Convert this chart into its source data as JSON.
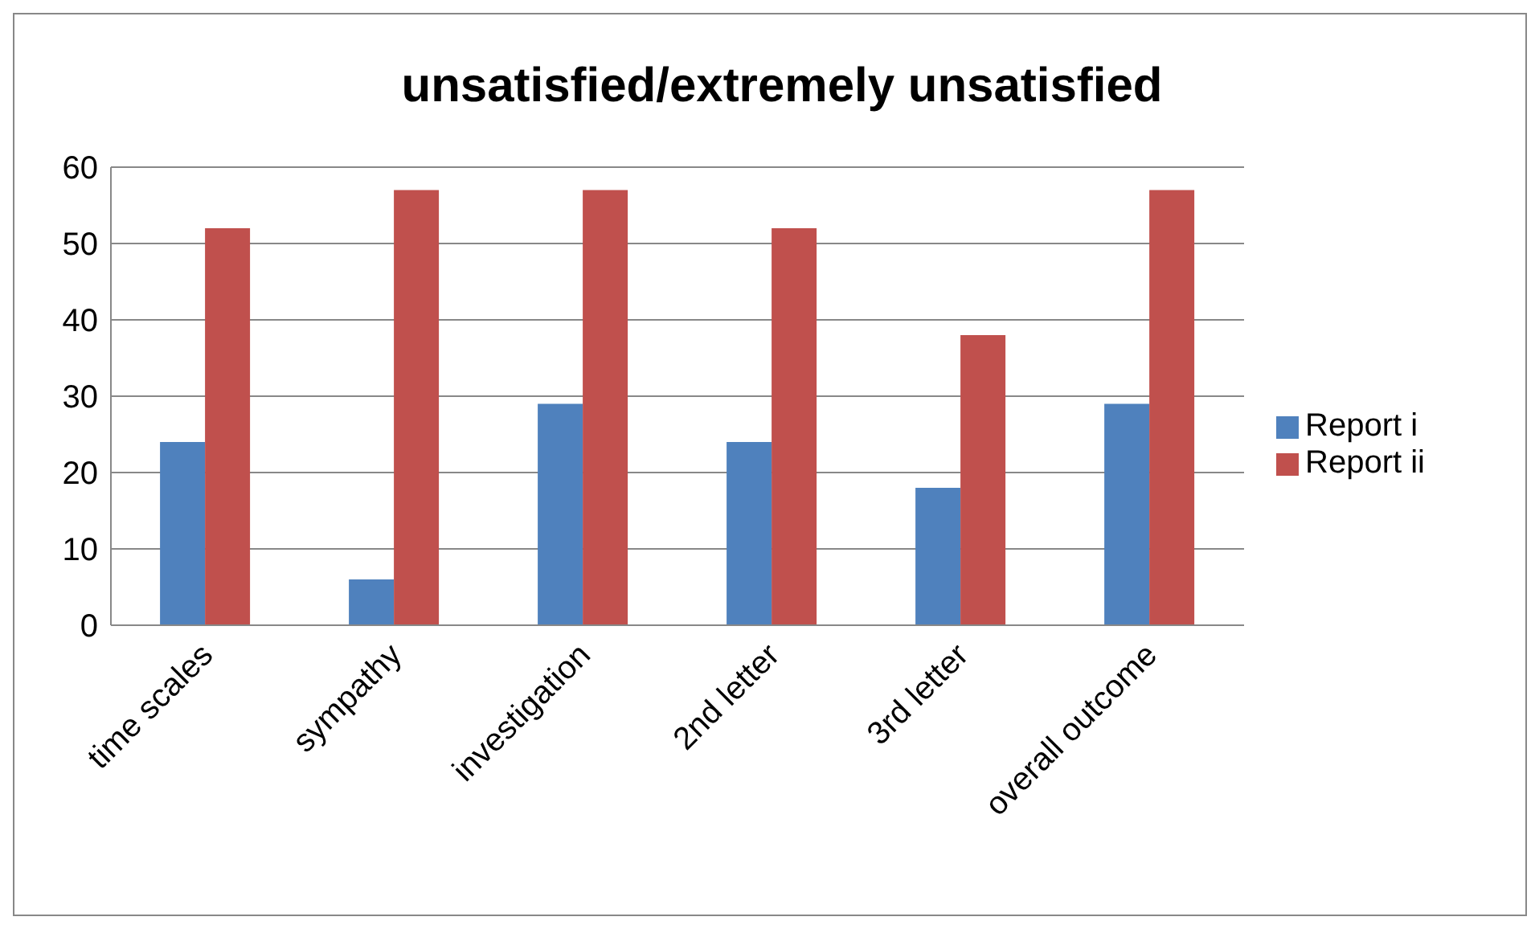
{
  "chart_data": {
    "type": "bar",
    "title": "unsatisfied/extremely unsatisfied",
    "categories": [
      "time scales",
      "sympathy",
      "investigation",
      "2nd letter",
      "3rd letter",
      "overall outcome"
    ],
    "series": [
      {
        "name": "Report i",
        "color": "#4f81bd",
        "values": [
          24,
          6,
          29,
          24,
          18,
          29
        ]
      },
      {
        "name": "Report ii",
        "color": "#c0504d",
        "values": [
          52,
          57,
          57,
          52,
          38,
          57
        ]
      }
    ],
    "ylim": [
      0,
      60
    ],
    "yticks": [
      0,
      10,
      20,
      30,
      40,
      50,
      60
    ],
    "grid": "y",
    "legend": "right"
  }
}
